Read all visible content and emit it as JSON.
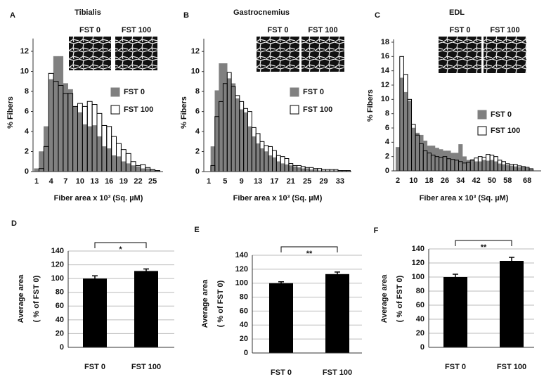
{
  "chart_data": [
    {
      "type": "bar",
      "panel_label": "A",
      "title": "Tibialis",
      "x_label": "Fiber area x 10³ (Sq. µM)",
      "y_label": "% Fibers",
      "inset_labels": [
        "FST 0",
        "FST 100"
      ],
      "grid": false,
      "categories": [
        "1",
        null,
        null,
        "4",
        null,
        null,
        "7",
        null,
        null,
        "10",
        null,
        null,
        "13",
        null,
        null,
        "16",
        null,
        null,
        "19",
        null,
        null,
        "22",
        null,
        null,
        "25",
        null
      ],
      "series": [
        {
          "name": "FST 0",
          "color": "#808080",
          "values": [
            0.3,
            2.0,
            4.5,
            9.2,
            11.5,
            11.5,
            8.8,
            8.2,
            6.5,
            5.9,
            4.7,
            4.5,
            4.6,
            3.5,
            2.5,
            2.3,
            1.6,
            1.5,
            1.0,
            0.8,
            0.6,
            0.5,
            0.3,
            0.3,
            0.2,
            0.1
          ]
        },
        {
          "name": "FST 100",
          "color": "#ffffff",
          "values": [
            0,
            0.3,
            2.5,
            9.8,
            9.0,
            8.6,
            7.8,
            7.8,
            6.5,
            6.8,
            6.5,
            7.0,
            6.7,
            5.8,
            4.6,
            4.5,
            3.5,
            2.8,
            2.2,
            1.8,
            1.0,
            0.6,
            0.7,
            0.4,
            0.2,
            0.1
          ]
        }
      ],
      "ylim": [
        0,
        13
      ],
      "yticks": [
        0,
        2,
        4,
        6,
        8,
        10,
        12
      ]
    },
    {
      "type": "bar",
      "panel_label": "B",
      "title": "Gastrocnemius",
      "x_label": "Fiber area x 10³ (Sq. µM)",
      "y_label": "% Fibers",
      "inset_labels": [
        "FST 0",
        "FST 100"
      ],
      "grid": false,
      "categories": [
        "1",
        null,
        null,
        null,
        "5",
        null,
        null,
        null,
        "9",
        null,
        null,
        null,
        "13",
        null,
        null,
        null,
        "17",
        null,
        null,
        null,
        "21",
        null,
        null,
        null,
        "25",
        null,
        null,
        null,
        "29",
        null,
        null,
        null,
        "33",
        null,
        null
      ],
      "series": [
        {
          "name": "FST 0",
          "color": "#808080",
          "values": [
            0,
            2.5,
            8.1,
            10.8,
            10.8,
            9.3,
            8.8,
            7.3,
            6.2,
            5.9,
            4.5,
            3.5,
            2.8,
            2.3,
            2.0,
            1.6,
            1.4,
            1.0,
            0.8,
            0.7,
            0.6,
            0.5,
            0.4,
            0.3,
            0.3,
            0.2,
            0.2,
            0.1,
            0.1,
            0.1,
            0.1,
            0.1,
            0.1,
            0.05,
            0.05
          ]
        },
        {
          "name": "FST 100",
          "color": "#ffffff",
          "values": [
            0,
            0.6,
            5.5,
            7.0,
            8.8,
            9.9,
            8.5,
            7.6,
            7.0,
            6.3,
            6.0,
            4.4,
            3.8,
            3.0,
            2.6,
            2.5,
            2.1,
            1.6,
            1.5,
            1.3,
            0.8,
            0.6,
            0.6,
            0.5,
            0.4,
            0.4,
            0.3,
            0.3,
            0.2,
            0.2,
            0.2,
            0.2,
            0.1,
            0.1,
            0.1
          ]
        }
      ],
      "ylim": [
        0,
        13
      ],
      "yticks": [
        0,
        2,
        4,
        6,
        8,
        10,
        12
      ]
    },
    {
      "type": "bar",
      "panel_label": "C",
      "title": "EDL",
      "x_label": "Fiber area x 10³ (Sq. µM)",
      "y_label": "% Fibers",
      "inset_labels": [
        "FST 0",
        "FST 100"
      ],
      "grid": false,
      "categories": [
        "2",
        null,
        null,
        null,
        "10",
        null,
        null,
        null,
        "18",
        null,
        null,
        null,
        "26",
        null,
        null,
        null,
        "34",
        null,
        null,
        null,
        "42",
        null,
        null,
        null,
        "50",
        null,
        null,
        null,
        "58",
        null,
        null,
        null,
        null,
        "68",
        null
      ],
      "series": [
        {
          "name": "FST 0",
          "color": "#808080",
          "values": [
            3.3,
            13.0,
            11.0,
            9.8,
            6.0,
            5.3,
            5.0,
            4.2,
            3.5,
            3.5,
            3.2,
            3.0,
            2.8,
            2.8,
            2.5,
            2.5,
            3.7,
            2.0,
            1.5,
            1.6,
            1.3,
            1.3,
            1.5,
            1.4,
            1.5,
            1.3,
            1.0,
            0.9,
            0.8,
            0.7,
            0.6,
            0.5,
            0.5,
            0.4,
            0.3
          ]
        },
        {
          "name": "FST 100",
          "color": "#ffffff",
          "values": [
            0,
            16.0,
            13.5,
            10.0,
            6.5,
            5.0,
            3.8,
            2.8,
            2.5,
            2.2,
            2.0,
            1.9,
            2.0,
            1.7,
            1.6,
            1.5,
            1.3,
            1.1,
            1.2,
            1.5,
            1.8,
            2.0,
            1.9,
            2.3,
            2.2,
            2.0,
            1.5,
            1.3,
            1.0,
            0.9,
            0.9,
            0.7,
            0.6,
            0.5,
            0.3
          ]
        }
      ],
      "ylim": [
        0,
        18
      ],
      "yticks": [
        0,
        2,
        4,
        6,
        8,
        10,
        12,
        14,
        16,
        18
      ]
    },
    {
      "type": "bar",
      "panel_label": "D",
      "y_label": [
        "Average area",
        "( % of FST 0)"
      ],
      "annotation": "*",
      "grid": true,
      "color": "#000000",
      "categories": [
        "FST 0",
        "FST 100"
      ],
      "values": [
        100,
        111
      ],
      "errors": [
        4,
        3
      ],
      "ylim": [
        0,
        140
      ],
      "yticks": [
        0,
        20,
        40,
        60,
        80,
        100,
        120,
        140
      ]
    },
    {
      "type": "bar",
      "panel_label": "E",
      "y_label": [
        "Average area",
        "( % of FST 0)"
      ],
      "annotation": "**",
      "grid": true,
      "color": "#000000",
      "categories": [
        "FST 0",
        "FST 100"
      ],
      "values": [
        100,
        113
      ],
      "errors": [
        2,
        3
      ],
      "ylim": [
        0,
        140
      ],
      "yticks": [
        0,
        20,
        40,
        60,
        80,
        100,
        120,
        140
      ]
    },
    {
      "type": "bar",
      "panel_label": "F",
      "y_label": [
        "Average area",
        "( % of FST 0)"
      ],
      "annotation": "**",
      "grid": true,
      "color": "#000000",
      "categories": [
        "FST 0",
        "FST 100"
      ],
      "values": [
        100,
        123
      ],
      "errors": [
        4,
        5
      ],
      "ylim": [
        0,
        140
      ],
      "yticks": [
        0,
        20,
        40,
        60,
        80,
        100,
        120,
        140
      ]
    }
  ]
}
